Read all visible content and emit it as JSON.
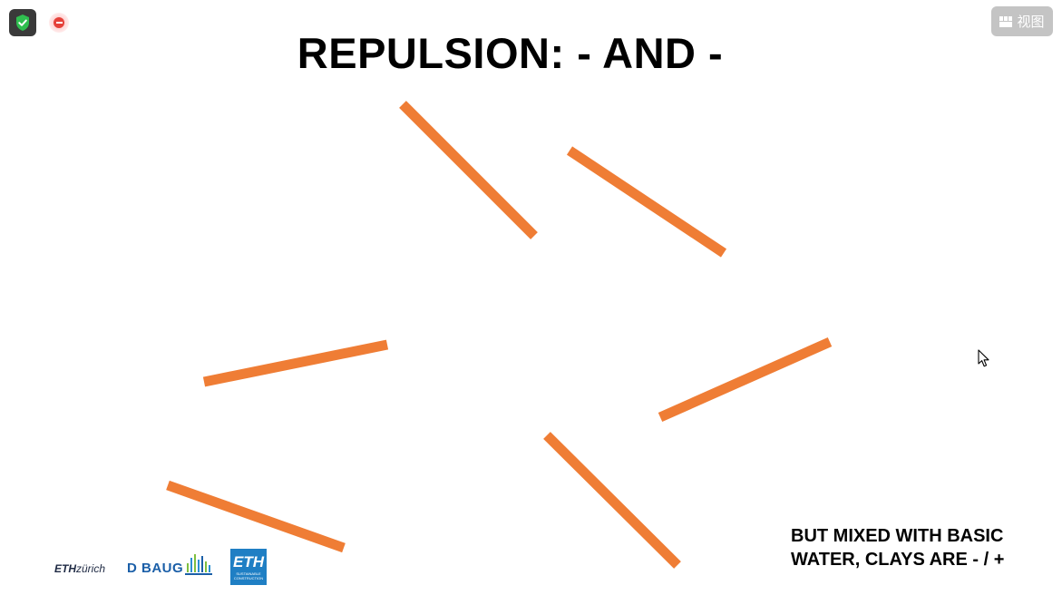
{
  "toolbar": {
    "view_label": "视图",
    "view_icon": "grid-icon",
    "shield_icon": "shield-check-icon",
    "record_icon": "record-stop-icon"
  },
  "slide": {
    "title": "REPULSION: - AND -",
    "caption_line1": "BUT MIXED WITH BASIC",
    "caption_line2": "WATER, CLAYS ARE - / +",
    "stick_color": "#ef7d35",
    "stick_count": 6
  },
  "logos": {
    "eth_zurich_bold": "ETH",
    "eth_zurich_rest": "zürich",
    "dbaug": "D BAUG",
    "eth_sc_main": "ETH",
    "eth_sc_sub": "SUSTAINABLE CONSTRUCTION"
  }
}
